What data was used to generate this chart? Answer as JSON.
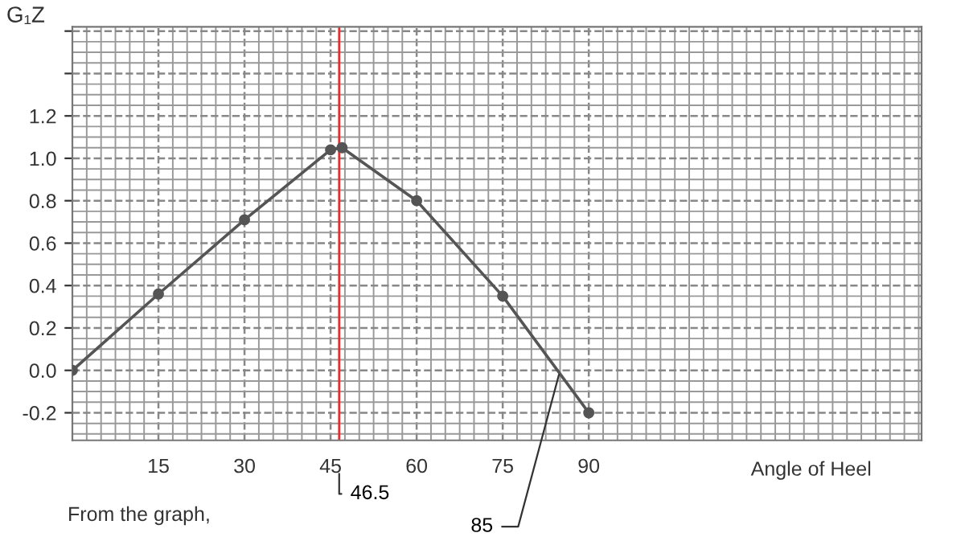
{
  "chart_data": {
    "type": "line",
    "ylabel": "G₁Z",
    "xlabel": "Angle of Heel",
    "x": [
      0,
      15,
      30,
      45,
      47,
      60,
      75,
      90
    ],
    "series": [
      {
        "color": "#555555",
        "values": [
          0,
          0.36,
          0.71,
          1.04,
          1.05,
          0.8,
          0.35,
          -0.2
        ]
      }
    ],
    "xlim": [
      0,
      148
    ],
    "ylim": [
      -0.33,
      1.62
    ],
    "xticks": [
      15,
      30,
      45,
      60,
      75,
      90
    ],
    "yticks": [
      -0.2,
      {
        "value": 0,
        "label": "0.0"
      },
      0.2,
      0.4,
      0.6,
      0.8,
      {
        "value": 1,
        "label": "1.0"
      },
      1.2,
      {
        "value": 1.4,
        "label": null
      },
      {
        "value": 1.6,
        "label": null
      }
    ],
    "ref_lines": [
      {
        "axis": "x",
        "value": 46.5,
        "label": "46.5",
        "color": "#e03030"
      }
    ],
    "annotations": [
      {
        "text": "85",
        "x": 85,
        "y": 0
      },
      "From the graph,"
    ],
    "grid": true,
    "marker": "circle",
    "line_style": "solid"
  }
}
